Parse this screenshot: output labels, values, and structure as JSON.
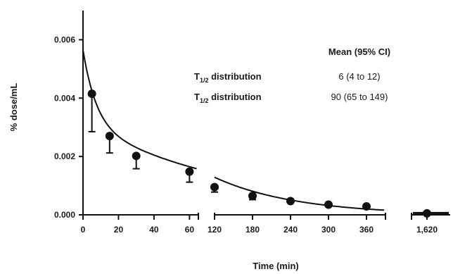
{
  "chart_data": {
    "type": "line",
    "xlabel": "Time (min)",
    "ylabel": "% dose/mL",
    "ylim": [
      0,
      0.007
    ],
    "y_ticks": [
      "0.000",
      "0.002",
      "0.004",
      "0.006"
    ],
    "x_segments": [
      {
        "range": [
          0,
          65
        ],
        "ticks": [
          "0",
          "20",
          "40",
          "60"
        ],
        "tick_values": [
          0,
          20,
          40,
          60
        ]
      },
      {
        "range": [
          120,
          390
        ],
        "ticks": [
          "120",
          "180",
          "240",
          "300",
          "360"
        ],
        "tick_values": [
          120,
          180,
          240,
          300,
          360
        ]
      },
      {
        "range": [
          1600,
          1650
        ],
        "ticks": [
          "1,620"
        ],
        "tick_values": [
          1620
        ]
      }
    ],
    "series": [
      {
        "x": [
          5,
          15,
          30,
          60,
          120,
          180,
          240,
          300,
          360,
          1620
        ],
        "y": [
          0.00415,
          0.0027,
          0.00202,
          0.00148,
          0.00095,
          0.00065,
          0.00047,
          0.00035,
          0.00029,
          5e-05
        ],
        "error_lower": [
          0.00285,
          0.00212,
          0.00158,
          0.00112,
          0.00078,
          0.00052,
          0.00042,
          0.0003,
          0.00025,
          3e-05
        ]
      }
    ],
    "annotation": {
      "header": "Mean (95% CI)",
      "rows": [
        {
          "label_main": "T",
          "label_sub": "1/2",
          "label_rest": " distribution",
          "value": "6 (4 to 12)"
        },
        {
          "label_main": "T",
          "label_sub": "1/2",
          "label_rest": " distribution",
          "value": "90 (65 to 149)"
        }
      ]
    }
  }
}
